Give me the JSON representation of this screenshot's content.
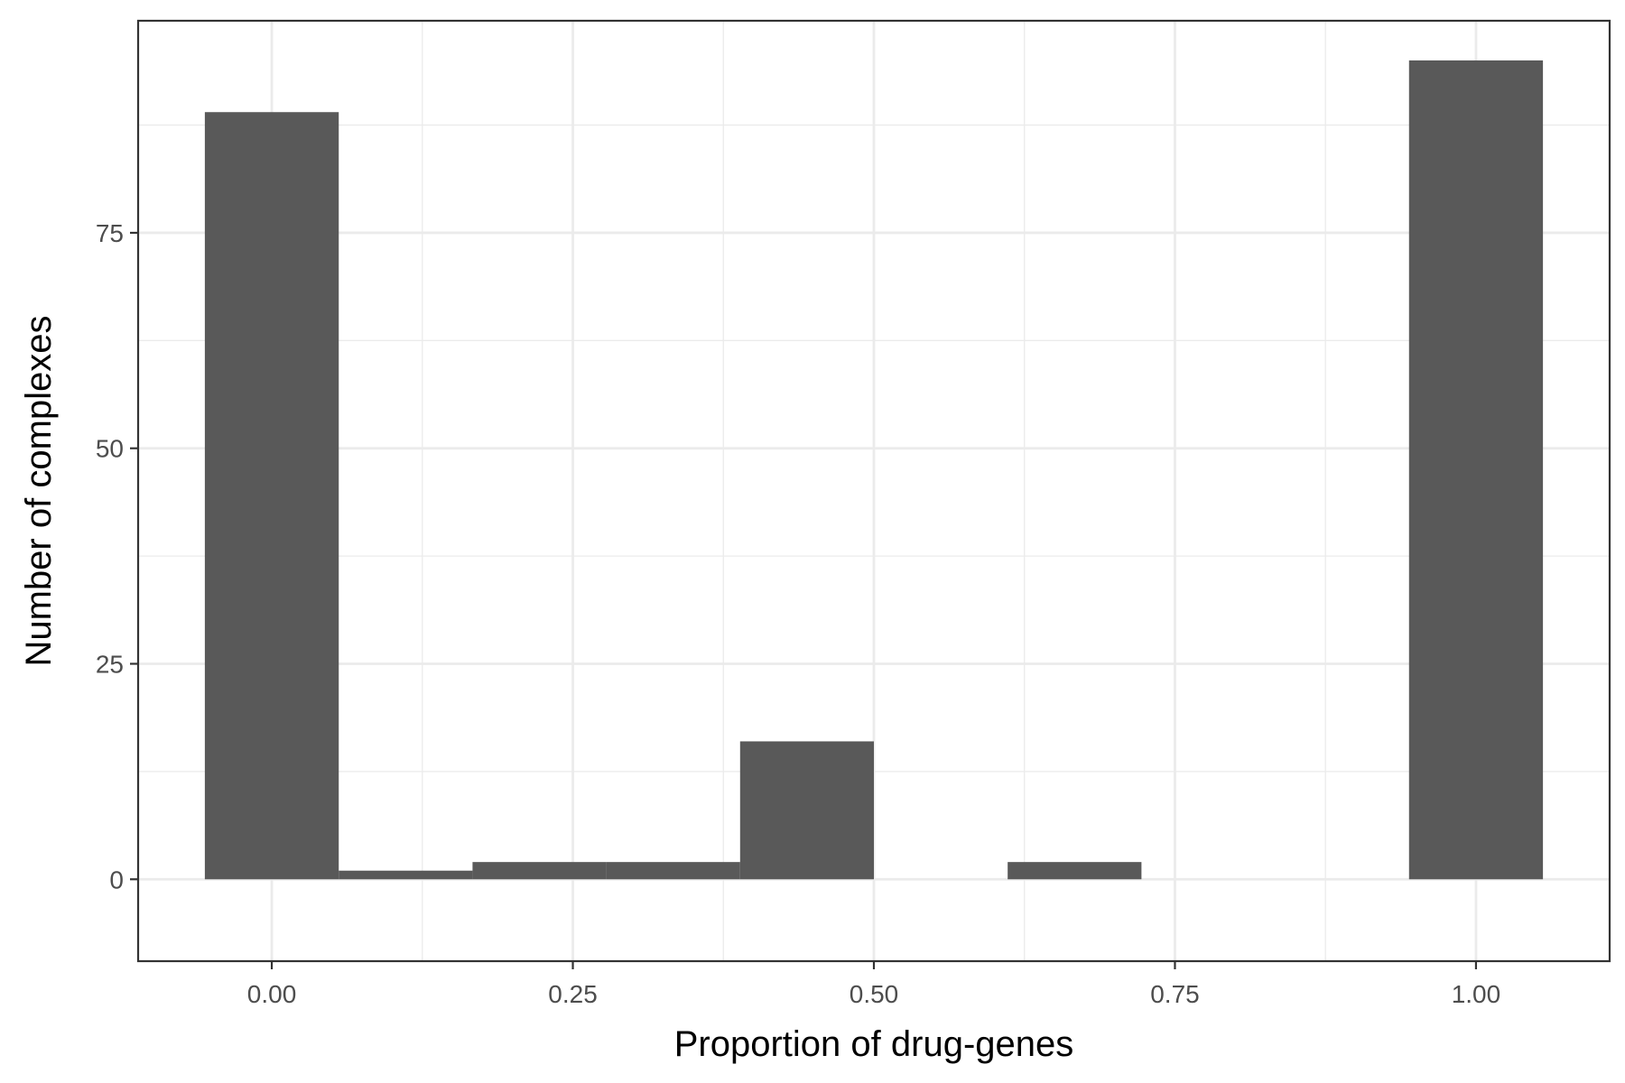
{
  "chart_data": {
    "type": "bar",
    "title": "",
    "xlabel": "Proportion of drug-genes",
    "ylabel": "Number of complexes",
    "xlim": [
      -0.111,
      1.111
    ],
    "ylim": [
      -9.5,
      99.6
    ],
    "x_ticks": [
      {
        "value": 0.0,
        "label": "0.00"
      },
      {
        "value": 0.25,
        "label": "0.25"
      },
      {
        "value": 0.5,
        "label": "0.50"
      },
      {
        "value": 0.75,
        "label": "0.75"
      },
      {
        "value": 1.0,
        "label": "1.00"
      }
    ],
    "y_ticks": [
      {
        "value": 0,
        "label": "0"
      },
      {
        "value": 25,
        "label": "25"
      },
      {
        "value": 50,
        "label": "50"
      },
      {
        "value": 75,
        "label": "75"
      }
    ],
    "x_minor_grid": [
      0.125,
      0.375,
      0.625,
      0.875
    ],
    "y_minor_grid": [
      12.5,
      37.5,
      62.5,
      87.5
    ],
    "grid": true,
    "bins": [
      {
        "x0": -0.0556,
        "x1": 0.0556,
        "count": 89
      },
      {
        "x0": 0.0556,
        "x1": 0.1667,
        "count": 1
      },
      {
        "x0": 0.1667,
        "x1": 0.2778,
        "count": 2
      },
      {
        "x0": 0.2778,
        "x1": 0.3889,
        "count": 2
      },
      {
        "x0": 0.3889,
        "x1": 0.5,
        "count": 16
      },
      {
        "x0": 0.5,
        "x1": 0.6111,
        "count": 0
      },
      {
        "x0": 0.6111,
        "x1": 0.7222,
        "count": 2
      },
      {
        "x0": 0.7222,
        "x1": 0.8333,
        "count": 0
      },
      {
        "x0": 0.8333,
        "x1": 0.9444,
        "count": 0
      },
      {
        "x0": 0.9444,
        "x1": 1.0556,
        "count": 95
      }
    ],
    "colors": {
      "bar": "#595959",
      "panel_border": "#333333",
      "grid": "#ebebeb",
      "tick_label": "#4d4d4d",
      "tick_mark": "#333333",
      "axis_title": "#000000"
    }
  }
}
